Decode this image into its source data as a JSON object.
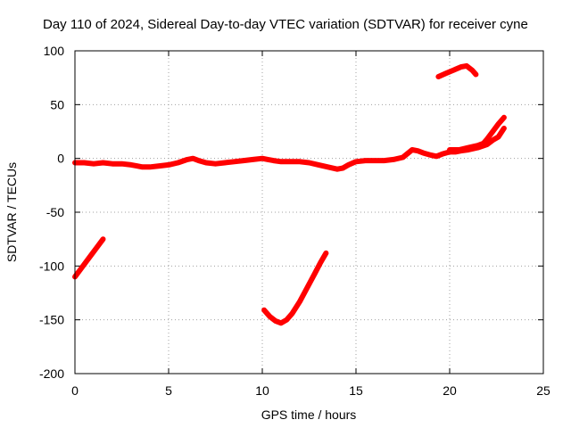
{
  "chart_data": {
    "type": "line",
    "title": "Day 110 of 2024, Sidereal Day-to-day VTEC variation (SDTVAR) for receiver cyne",
    "xlabel": "GPS time / hours",
    "ylabel": "SDTVAR / TECUs",
    "xlim": [
      0,
      25
    ],
    "ylim": [
      -200,
      100
    ],
    "xticks": [
      0,
      5,
      10,
      15,
      20,
      25
    ],
    "yticks": [
      -200,
      -150,
      -100,
      -50,
      0,
      50,
      100
    ],
    "grid": true,
    "series_color": "#ff0000",
    "segments": [
      {
        "name": "arc-1",
        "x": [
          0,
          0.3,
          0.6,
          0.9,
          1.2,
          1.5
        ],
        "y": [
          -110,
          -103,
          -96,
          -89,
          -82,
          -75
        ]
      },
      {
        "name": "arc-2",
        "x": [
          0,
          0.5,
          1,
          1.5,
          2,
          2.5,
          3,
          3.3,
          3.6,
          4,
          4.5,
          5,
          5.5,
          6,
          6.3,
          6.6,
          7,
          7.5,
          8,
          8.5,
          9,
          9.5,
          10,
          10.3,
          10.6,
          11,
          11.5,
          12,
          12.5,
          13,
          13.5,
          14,
          14.3,
          14.6,
          15,
          15.5,
          16,
          16.5,
          17,
          17.5,
          18,
          18.3,
          18.6,
          19,
          19.3,
          19.6,
          20,
          20.3,
          20.6,
          21,
          21.5,
          22,
          22.3,
          22.6,
          22.9
        ],
        "y": [
          -4,
          -4,
          -5,
          -4,
          -5,
          -5,
          -6,
          -7,
          -8,
          -8,
          -7,
          -6,
          -4,
          -1,
          0,
          -2,
          -4,
          -5,
          -4,
          -3,
          -2,
          -1,
          0,
          -1,
          -2,
          -3,
          -3,
          -3,
          -4,
          -6,
          -8,
          -10,
          -9,
          -6,
          -3,
          -2,
          -2,
          -2,
          -1,
          1,
          8,
          7,
          5,
          3,
          2,
          4,
          6,
          6,
          7,
          8,
          10,
          13,
          17,
          20,
          28
        ]
      },
      {
        "name": "arc-3",
        "x": [
          20,
          20.5,
          21,
          21.5,
          21.8,
          22,
          22.3,
          22.6,
          22.9
        ],
        "y": [
          8,
          8,
          10,
          12,
          14,
          18,
          25,
          32,
          38
        ]
      },
      {
        "name": "arc-4",
        "x": [
          10.1,
          10.4,
          10.7,
          11,
          11.3,
          11.6,
          12,
          12.4,
          12.8,
          13.1,
          13.4
        ],
        "y": [
          -141,
          -147,
          -151,
          -153,
          -150,
          -144,
          -133,
          -120,
          -107,
          -97,
          -88
        ]
      },
      {
        "name": "arc-5",
        "x": [
          19.4,
          19.8,
          20.2,
          20.6,
          20.9,
          21.2,
          21.4
        ],
        "y": [
          76,
          79,
          82,
          85,
          86,
          82,
          78
        ]
      }
    ]
  }
}
